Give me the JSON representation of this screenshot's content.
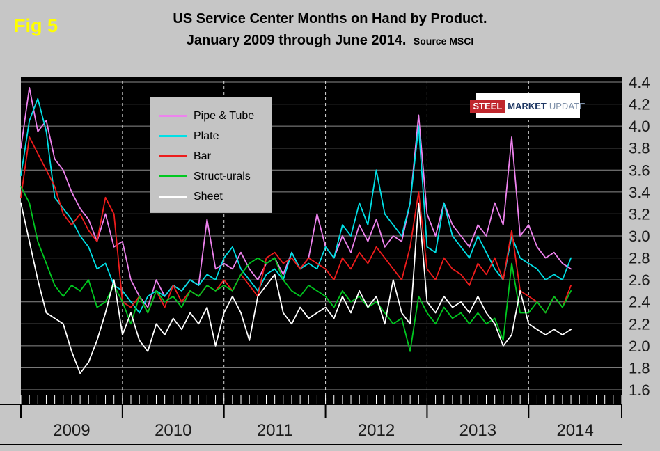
{
  "fig_label": "Fig 5",
  "title": {
    "line1": "US Service Center Months on Hand by Product.",
    "line2": "January 2009 through June 2014.",
    "source": "Source MSCI"
  },
  "logo": {
    "steel": "STEEL",
    "market": "MARKET",
    "update": "UPDATE"
  },
  "colors": {
    "page_bg": "#C6C6C6",
    "plot_bg": "#000000",
    "grid": "#8C8C8C",
    "dashed_year_line": "#D8D8D8",
    "axis_text": "#1A1A1A",
    "fig_label": "#FFFF00",
    "legend_bg": "#C4C4C4",
    "tick": "#FFFFFF",
    "frame": "#000000",
    "logo_red": "#C0272D",
    "logo_navy": "#1F3864",
    "logo_gray": "#7D8FA8"
  },
  "chart_data": {
    "type": "line",
    "title": "US Service Center Months on Hand by Product. January 2009 through June 2014.",
    "ylim": [
      1.6,
      4.4
    ],
    "yticks": [
      "1.6",
      "1.8",
      "2.0",
      "2.2",
      "2.4",
      "2.6",
      "2.8",
      "3.0",
      "3.2",
      "3.4",
      "3.6",
      "3.8",
      "4.0",
      "4.2",
      "4.4"
    ],
    "year_labels": [
      "2009",
      "2010",
      "2011",
      "2012",
      "2013",
      "2014"
    ],
    "x_axis": {
      "start": "Jan 2009",
      "data_end": "Jun 2014",
      "domain_months": 72,
      "data_months": 66
    },
    "grid": true,
    "legend_position": "upper-left-inside",
    "series": [
      {
        "name": "Pipe & Tube",
        "color": "#EE82EE",
        "values": [
          3.8,
          4.35,
          3.95,
          4.05,
          3.7,
          3.6,
          3.4,
          3.25,
          3.15,
          2.95,
          3.2,
          2.9,
          2.95,
          2.6,
          2.45,
          2.35,
          2.6,
          2.45,
          2.55,
          2.5,
          2.6,
          2.55,
          3.15,
          2.7,
          2.75,
          2.7,
          2.85,
          2.7,
          2.6,
          2.75,
          2.8,
          2.65,
          2.85,
          2.7,
          2.8,
          3.2,
          2.9,
          2.8,
          3.0,
          2.85,
          3.1,
          2.95,
          3.15,
          2.9,
          3.0,
          2.95,
          3.3,
          4.1,
          3.2,
          3.0,
          3.3,
          3.1,
          3.0,
          2.9,
          3.1,
          3.0,
          3.3,
          3.1,
          3.9,
          3.0,
          3.1,
          2.9,
          2.8,
          2.85,
          2.75,
          2.7
        ]
      },
      {
        "name": "Plate",
        "color": "#00E0E6",
        "values": [
          3.55,
          4.05,
          4.25,
          3.95,
          3.35,
          3.25,
          3.15,
          3.0,
          2.9,
          2.7,
          2.75,
          2.55,
          2.5,
          2.4,
          2.3,
          2.45,
          2.5,
          2.45,
          2.55,
          2.5,
          2.6,
          2.55,
          2.65,
          2.6,
          2.8,
          2.9,
          2.7,
          2.6,
          2.5,
          2.65,
          2.7,
          2.6,
          2.85,
          2.7,
          2.75,
          2.7,
          2.9,
          2.8,
          3.1,
          3.0,
          3.3,
          3.1,
          3.6,
          3.2,
          3.1,
          3.0,
          3.3,
          4.0,
          2.9,
          2.85,
          3.3,
          3.0,
          2.9,
          2.8,
          3.0,
          2.85,
          2.7,
          2.6,
          3.0,
          2.8,
          2.75,
          2.7,
          2.6,
          2.65,
          2.6,
          2.8
        ]
      },
      {
        "name": "Bar",
        "color": "#EE1C1C",
        "values": [
          3.35,
          3.9,
          3.75,
          3.6,
          3.45,
          3.2,
          3.1,
          3.2,
          3.05,
          2.95,
          3.35,
          3.2,
          2.4,
          2.35,
          2.45,
          2.3,
          2.5,
          2.35,
          2.55,
          2.4,
          2.5,
          2.45,
          2.55,
          2.5,
          2.6,
          2.5,
          2.65,
          2.55,
          2.45,
          2.8,
          2.85,
          2.75,
          2.8,
          2.7,
          2.8,
          2.75,
          2.7,
          2.6,
          2.8,
          2.7,
          2.85,
          2.75,
          2.9,
          2.8,
          2.7,
          2.6,
          2.9,
          3.4,
          2.7,
          2.6,
          2.8,
          2.7,
          2.65,
          2.55,
          2.75,
          2.65,
          2.8,
          2.6,
          3.05,
          2.5,
          2.45,
          2.4,
          2.3,
          2.45,
          2.35,
          2.55
        ]
      },
      {
        "name": "Struct-urals",
        "color": "#00C820",
        "values": [
          3.45,
          3.3,
          2.95,
          2.75,
          2.55,
          2.45,
          2.55,
          2.5,
          2.6,
          2.35,
          2.4,
          2.55,
          2.4,
          2.2,
          2.45,
          2.3,
          2.5,
          2.4,
          2.45,
          2.35,
          2.5,
          2.45,
          2.55,
          2.5,
          2.55,
          2.5,
          2.65,
          2.75,
          2.8,
          2.75,
          2.8,
          2.6,
          2.5,
          2.45,
          2.55,
          2.5,
          2.45,
          2.35,
          2.5,
          2.4,
          2.45,
          2.35,
          2.4,
          2.3,
          2.2,
          2.25,
          1.95,
          2.45,
          2.3,
          2.2,
          2.35,
          2.25,
          2.3,
          2.2,
          2.3,
          2.2,
          2.25,
          2.05,
          2.75,
          2.3,
          2.3,
          2.4,
          2.3,
          2.45,
          2.35,
          2.5
        ]
      },
      {
        "name": "Sheet",
        "color": "#FFFFFF",
        "values": [
          3.3,
          2.95,
          2.6,
          2.3,
          2.25,
          2.2,
          1.95,
          1.75,
          1.85,
          2.05,
          2.3,
          2.6,
          2.1,
          2.3,
          2.05,
          1.95,
          2.2,
          2.1,
          2.25,
          2.15,
          2.3,
          2.2,
          2.35,
          2.0,
          2.3,
          2.45,
          2.3,
          2.05,
          2.45,
          2.55,
          2.65,
          2.3,
          2.2,
          2.35,
          2.25,
          2.3,
          2.35,
          2.25,
          2.45,
          2.3,
          2.5,
          2.35,
          2.45,
          2.2,
          2.6,
          2.3,
          2.2,
          3.3,
          2.4,
          2.3,
          2.45,
          2.35,
          2.4,
          2.3,
          2.45,
          2.3,
          2.2,
          2.0,
          2.1,
          2.5,
          2.2,
          2.15,
          2.1,
          2.15,
          2.1,
          2.15
        ]
      }
    ]
  }
}
